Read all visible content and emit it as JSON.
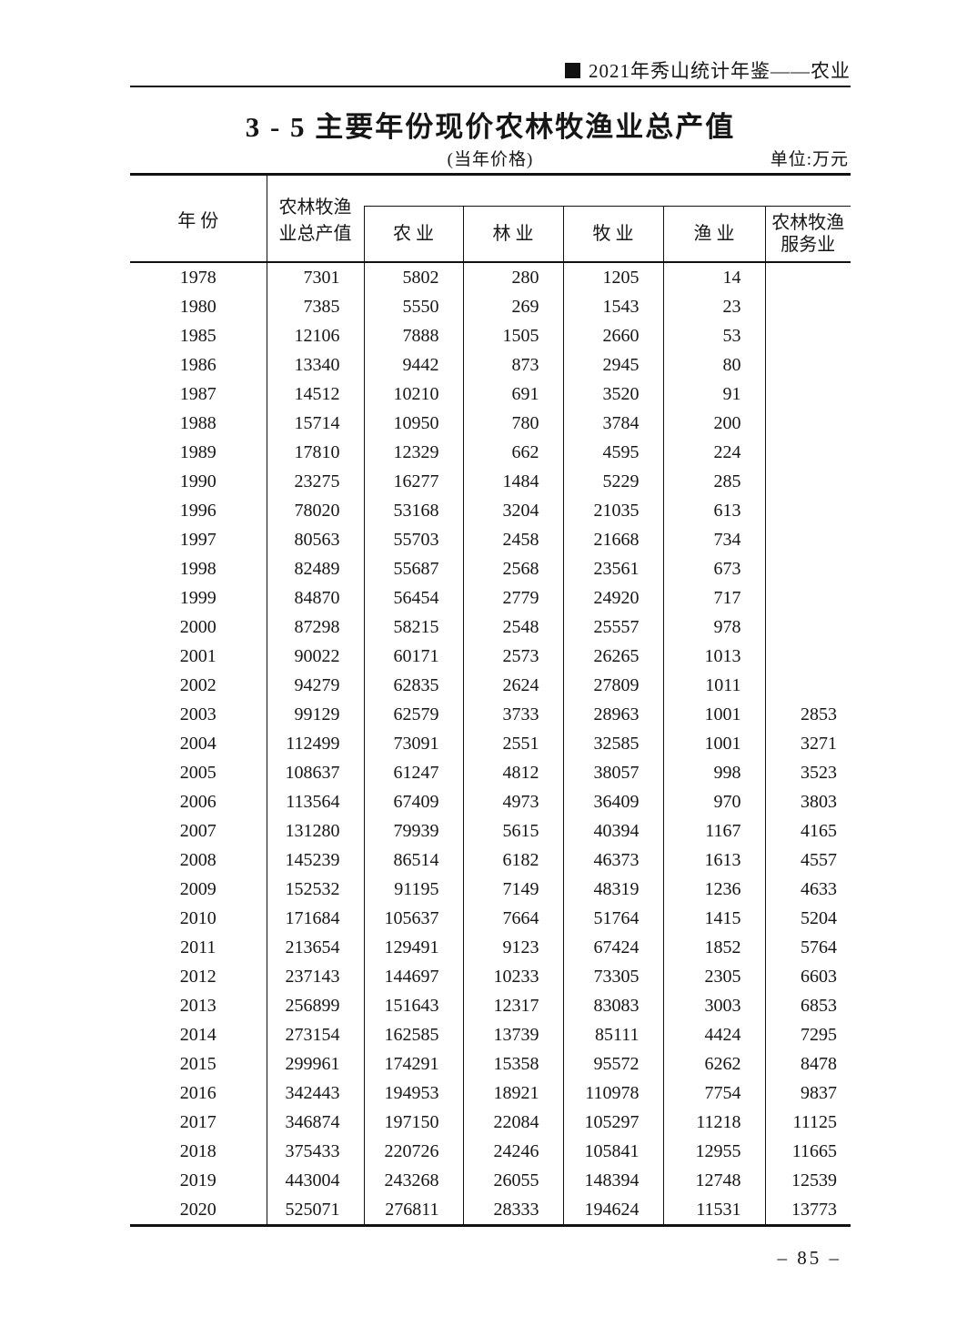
{
  "page": {
    "running_head": "2021年秀山统计年鉴——农业",
    "title": "3 - 5 主要年份现价农林牧渔业总产值",
    "price_note": "(当年价格)",
    "unit_note": "单位:万元",
    "page_number": "– 85 –"
  },
  "table": {
    "header": {
      "year": "年 份",
      "total_line1": "农林牧渔",
      "total_line2": "业总产值",
      "agriculture": "农 业",
      "forestry": "林 业",
      "husbandry": "牧 业",
      "fishery": "渔 业",
      "service_line1": "农林牧渔",
      "service_line2": "服务业"
    },
    "columns": [
      "年份",
      "农林牧渔业总产值",
      "农业",
      "林业",
      "牧业",
      "渔业",
      "农林牧渔服务业"
    ],
    "rows": [
      [
        "1978",
        "7301",
        "5802",
        "280",
        "1205",
        "14",
        ""
      ],
      [
        "1980",
        "7385",
        "5550",
        "269",
        "1543",
        "23",
        ""
      ],
      [
        "1985",
        "12106",
        "7888",
        "1505",
        "2660",
        "53",
        ""
      ],
      [
        "1986",
        "13340",
        "9442",
        "873",
        "2945",
        "80",
        ""
      ],
      [
        "1987",
        "14512",
        "10210",
        "691",
        "3520",
        "91",
        ""
      ],
      [
        "1988",
        "15714",
        "10950",
        "780",
        "3784",
        "200",
        ""
      ],
      [
        "1989",
        "17810",
        "12329",
        "662",
        "4595",
        "224",
        ""
      ],
      [
        "1990",
        "23275",
        "16277",
        "1484",
        "5229",
        "285",
        ""
      ],
      [
        "1996",
        "78020",
        "53168",
        "3204",
        "21035",
        "613",
        ""
      ],
      [
        "1997",
        "80563",
        "55703",
        "2458",
        "21668",
        "734",
        ""
      ],
      [
        "1998",
        "82489",
        "55687",
        "2568",
        "23561",
        "673",
        ""
      ],
      [
        "1999",
        "84870",
        "56454",
        "2779",
        "24920",
        "717",
        ""
      ],
      [
        "2000",
        "87298",
        "58215",
        "2548",
        "25557",
        "978",
        ""
      ],
      [
        "2001",
        "90022",
        "60171",
        "2573",
        "26265",
        "1013",
        ""
      ],
      [
        "2002",
        "94279",
        "62835",
        "2624",
        "27809",
        "1011",
        ""
      ],
      [
        "2003",
        "99129",
        "62579",
        "3733",
        "28963",
        "1001",
        "2853"
      ],
      [
        "2004",
        "112499",
        "73091",
        "2551",
        "32585",
        "1001",
        "3271"
      ],
      [
        "2005",
        "108637",
        "61247",
        "4812",
        "38057",
        "998",
        "3523"
      ],
      [
        "2006",
        "113564",
        "67409",
        "4973",
        "36409",
        "970",
        "3803"
      ],
      [
        "2007",
        "131280",
        "79939",
        "5615",
        "40394",
        "1167",
        "4165"
      ],
      [
        "2008",
        "145239",
        "86514",
        "6182",
        "46373",
        "1613",
        "4557"
      ],
      [
        "2009",
        "152532",
        "91195",
        "7149",
        "48319",
        "1236",
        "4633"
      ],
      [
        "2010",
        "171684",
        "105637",
        "7664",
        "51764",
        "1415",
        "5204"
      ],
      [
        "2011",
        "213654",
        "129491",
        "9123",
        "67424",
        "1852",
        "5764"
      ],
      [
        "2012",
        "237143",
        "144697",
        "10233",
        "73305",
        "2305",
        "6603"
      ],
      [
        "2013",
        "256899",
        "151643",
        "12317",
        "83083",
        "3003",
        "6853"
      ],
      [
        "2014",
        "273154",
        "162585",
        "13739",
        "85111",
        "4424",
        "7295"
      ],
      [
        "2015",
        "299961",
        "174291",
        "15358",
        "95572",
        "6262",
        "8478"
      ],
      [
        "2016",
        "342443",
        "194953",
        "18921",
        "110978",
        "7754",
        "9837"
      ],
      [
        "2017",
        "346874",
        "197150",
        "22084",
        "105297",
        "11218",
        "11125"
      ],
      [
        "2018",
        "375433",
        "220726",
        "24246",
        "105841",
        "12955",
        "11665"
      ],
      [
        "2019",
        "443004",
        "243268",
        "26055",
        "148394",
        "12748",
        "12539"
      ],
      [
        "2020",
        "525071",
        "276811",
        "28333",
        "194624",
        "11531",
        "13773"
      ]
    ]
  }
}
